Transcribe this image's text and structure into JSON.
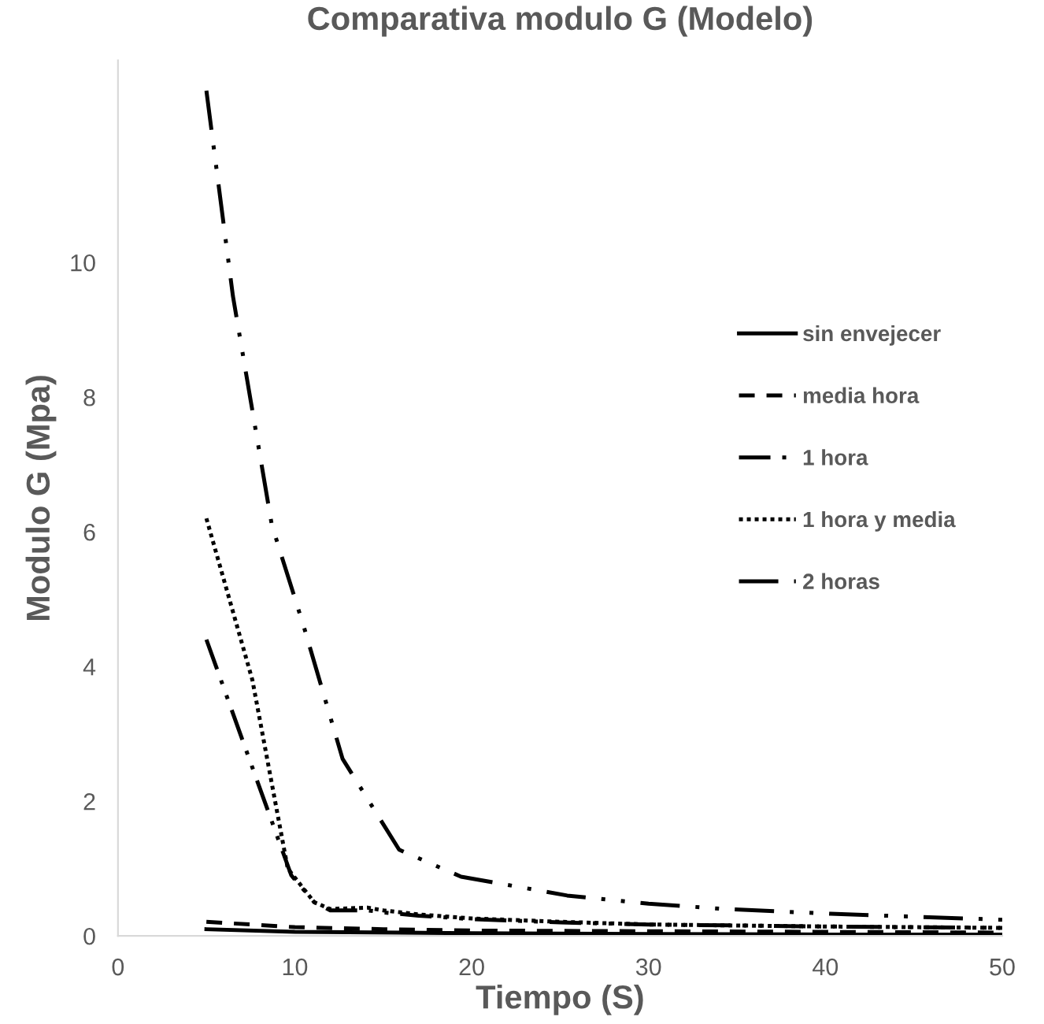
{
  "chart_data": {
    "type": "line",
    "title": "Comparativa modulo G (Modelo)",
    "xlabel": "Tiempo (S)",
    "ylabel": "Modulo G (Mpa)",
    "xlim": [
      0,
      50
    ],
    "xticks": [
      0,
      10,
      20,
      30,
      40,
      50
    ],
    "ylim": [
      0,
      13
    ],
    "yticks": [
      0,
      2,
      4,
      6,
      8,
      10
    ],
    "grid": false,
    "legend": "right",
    "marker": "none",
    "series": [
      {
        "name": "sin envejecer",
        "color": "#000000",
        "line_style": "solid",
        "x": [
          5,
          10,
          20,
          30,
          40,
          50
        ],
        "values": [
          0.1,
          0.06,
          0.04,
          0.03,
          0.02,
          0.02
        ]
      },
      {
        "name": "media hora",
        "color": "#000000",
        "line_style": "dashed",
        "x": [
          5,
          10,
          15,
          20,
          30,
          40,
          50
        ],
        "values": [
          0.21,
          0.13,
          0.1,
          0.08,
          0.07,
          0.06,
          0.05
        ]
      },
      {
        "name": "1 hora",
        "color": "#000000",
        "line_style": "dashdot",
        "x": [
          5,
          7.6,
          9.8,
          11.1,
          12,
          14.1,
          15,
          17,
          20,
          25,
          30,
          40,
          50
        ],
        "values": [
          4.4,
          2.5,
          0.9,
          0.5,
          0.38,
          0.38,
          0.35,
          0.3,
          0.25,
          0.2,
          0.17,
          0.14,
          0.12
        ]
      },
      {
        "name": "1 hora y media",
        "color": "#000000",
        "line_style": "dotted",
        "x": [
          5,
          7.6,
          9.6,
          11.1,
          12,
          14.1,
          15,
          17,
          20,
          25,
          30,
          40,
          50
        ],
        "values": [
          6.2,
          3.8,
          1.0,
          0.5,
          0.4,
          0.42,
          0.38,
          0.32,
          0.26,
          0.21,
          0.17,
          0.14,
          0.12
        ]
      },
      {
        "name": "2 horas",
        "color": "#000000",
        "line_style": "dashdotdot",
        "x": [
          5,
          6.5,
          8.7,
          10.5,
          12.7,
          15.9,
          19.4,
          25.4,
          30,
          34.3,
          40.3,
          50
        ],
        "values": [
          12.55,
          9.5,
          6.1,
          4.6,
          2.63,
          1.28,
          0.88,
          0.6,
          0.48,
          0.4,
          0.33,
          0.24
        ]
      }
    ]
  }
}
